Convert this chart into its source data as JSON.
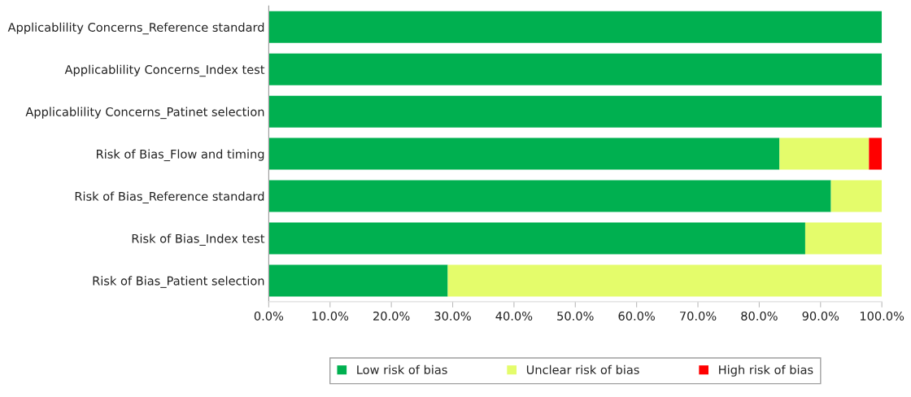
{
  "chart_data": {
    "type": "bar",
    "orientation": "horizontal",
    "stacked": true,
    "categories": [
      "Applicablility Concerns_Reference standard",
      "Applicablility Concerns_Index test",
      "Applicablility Concerns_Patinet selection",
      "Risk of Bias_Flow and timing",
      "Risk of Bias_Reference standard",
      "Risk of Bias_Index test",
      "Risk of Bias_Patient selection"
    ],
    "series": [
      {
        "name": "Low risk of bias",
        "color": "#00b050",
        "values": [
          100,
          100,
          100,
          83.3,
          91.7,
          87.5,
          29.2
        ]
      },
      {
        "name": "Unclear risk of bias",
        "color": "#e4fc6b",
        "values": [
          0,
          0,
          0,
          14.6,
          8.3,
          12.5,
          70.8
        ]
      },
      {
        "name": "High risk of bias",
        "color": "#ff0000",
        "values": [
          0,
          0,
          0,
          2.1,
          0,
          0,
          0
        ]
      }
    ],
    "xlim": [
      0,
      100
    ],
    "xticks": [
      {
        "value": 0,
        "label": "0.0%"
      },
      {
        "value": 10,
        "label": "10.0%"
      },
      {
        "value": 20,
        "label": "20.0%"
      },
      {
        "value": 30,
        "label": "30.0%"
      },
      {
        "value": 40,
        "label": "40.0%"
      },
      {
        "value": 50,
        "label": "50.0%"
      },
      {
        "value": 60,
        "label": "60.0%"
      },
      {
        "value": 70,
        "label": "70.0%"
      },
      {
        "value": 80,
        "label": "80.0%"
      },
      {
        "value": 90,
        "label": "90.0%"
      },
      {
        "value": 100,
        "label": "100.0%"
      }
    ],
    "grid": false,
    "legend": "bottom"
  }
}
